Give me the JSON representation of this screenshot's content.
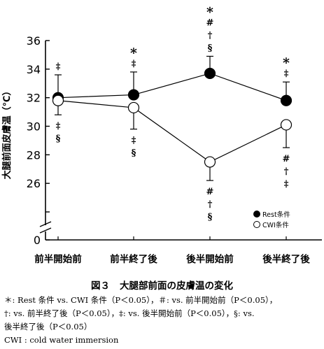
{
  "chart_data": {
    "type": "line",
    "ylabel": "大腿前面皮膚温（℃）",
    "categories": [
      "前半開始前",
      "前半終了後",
      "後半開始前",
      "後半終了後"
    ],
    "ylim": [
      24,
      36
    ],
    "y_axis_origin_label": "0",
    "y_axis_break": true,
    "yticks": [
      24,
      26,
      28,
      30,
      32,
      34,
      36
    ],
    "ytick_labels": [
      "",
      "26",
      "28",
      "30",
      "32",
      "34",
      "36"
    ],
    "series": [
      {
        "name": "Rest条件",
        "marker": "filled",
        "values": [
          32.0,
          32.2,
          33.7,
          31.8
        ],
        "error": [
          1.6,
          1.6,
          1.2,
          1.3
        ],
        "error_direction": "up",
        "annotations": [
          [
            "‡"
          ],
          [
            "*",
            "‡"
          ],
          [
            "*",
            "#",
            "†",
            "§"
          ],
          [
            "*",
            "‡"
          ]
        ]
      },
      {
        "name": "CWI条件",
        "marker": "open",
        "values": [
          31.8,
          31.3,
          27.5,
          30.1
        ],
        "error": [
          1.0,
          1.5,
          1.3,
          1.6
        ],
        "error_direction": "down",
        "annotations": [
          [
            "‡",
            "§"
          ],
          [
            "‡",
            "§"
          ],
          [
            "#",
            "†",
            "§"
          ],
          [
            "#",
            "†",
            "‡"
          ]
        ]
      }
    ],
    "legend_position": "bottom-right",
    "grid": false
  },
  "caption": {
    "figure_number": "図３",
    "title": "大腿部前面の皮膚温の変化"
  },
  "footnotes": [
    "＊: Rest 条件 vs. CWI 条件（P＜0.05），＃: vs. 前半開始前（P＜0.05），",
    "†: vs. 前半終了後（P＜0.05），‡: vs. 後半開始前（P＜0.05），§: vs.",
    "後半終了後（P＜0.05）",
    "CWI : cold water immersion"
  ]
}
